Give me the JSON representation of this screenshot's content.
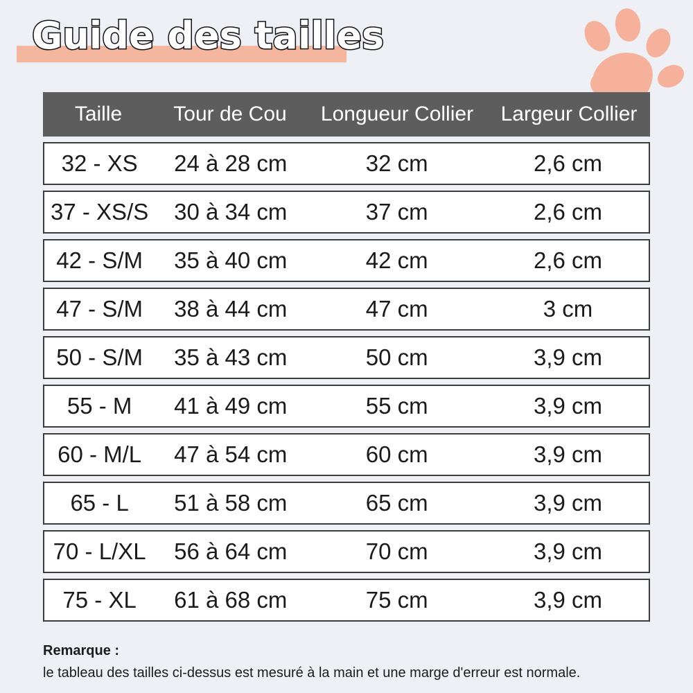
{
  "title": "Guide des tailles",
  "colors": {
    "accent": "#f5b6a0",
    "header_bg": "#5d5d5d",
    "paw": "#f6b19c"
  },
  "paw_icon": "paw-print-icon",
  "table": {
    "headers": [
      "Taille",
      "Tour de Cou",
      "Longueur Collier",
      "Largeur Collier"
    ],
    "rows": [
      [
        "32 - XS",
        "24 à 28 cm",
        "32 cm",
        "2,6 cm"
      ],
      [
        "37 - XS/S",
        "30 à 34 cm",
        "37 cm",
        "2,6 cm"
      ],
      [
        "42 - S/M",
        "35 à 40 cm",
        "42 cm",
        "2,6 cm"
      ],
      [
        "47 - S/M",
        "38 à 44 cm",
        "47 cm",
        "3 cm"
      ],
      [
        "50 - S/M",
        "35 à 43 cm",
        "50 cm",
        "3,9 cm"
      ],
      [
        "55 - M",
        "41 à 49 cm",
        "55 cm",
        "3,9 cm"
      ],
      [
        "60 - M/L",
        "47 à 54 cm",
        "60 cm",
        "3,9 cm"
      ],
      [
        "65 - L",
        "51 à 58 cm",
        "65 cm",
        "3,9 cm"
      ],
      [
        "70 - L/XL",
        "56 à 64 cm",
        "70 cm",
        "3,9 cm"
      ],
      [
        "75 - XL",
        "61 à 68 cm",
        "75 cm",
        "3,9 cm"
      ]
    ]
  },
  "note": {
    "label": "Remarque :",
    "text": "le tableau des tailles ci-dessus est mesuré à la main et une marge d'erreur est normale."
  }
}
